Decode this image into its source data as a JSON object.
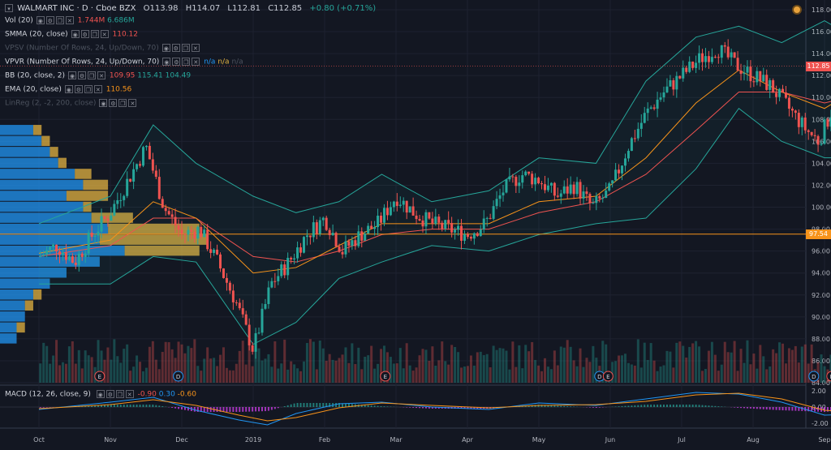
{
  "header": {
    "symbol_title": "WALMART INC · D · Cboe BZX",
    "ohlc": {
      "o_label": "O",
      "open": "113.98",
      "h_label": "H",
      "high": "114.07",
      "l_label": "L",
      "low": "112.81",
      "c_label": "C",
      "close": "112.85",
      "change": "+0.80 (+0.71%)"
    }
  },
  "indicators": [
    {
      "name": "Vol (20)",
      "values": [
        "1.744M",
        "6.686M"
      ],
      "colors": [
        "#ef5350",
        "#26a69a"
      ],
      "buttons": 4,
      "dim": false
    },
    {
      "name": "SMMA (20, close)",
      "values": [
        "110.12"
      ],
      "colors": [
        "#ef5350"
      ],
      "buttons": 4,
      "dim": false
    },
    {
      "name": "VPSV (Number Of Rows, 24, Up/Down, 70)",
      "values": [],
      "colors": [],
      "buttons": 4,
      "dim": true
    },
    {
      "name": "VPVR (Number Of Rows, 24, Up/Down, 70)",
      "values": [
        "n/a",
        "n/a",
        "n/a"
      ],
      "colors": [
        "#2196f3",
        "#e3b341",
        "#4c525e"
      ],
      "buttons": 4,
      "dim": false
    },
    {
      "name": "BB (20, close, 2)",
      "values": [
        "109.95",
        "115.41",
        "104.49"
      ],
      "colors": [
        "#ef5350",
        "#26a69a",
        "#26a69a"
      ],
      "buttons": 4,
      "dim": false
    },
    {
      "name": "EMA (20, close)",
      "values": [
        "110.56"
      ],
      "colors": [
        "#f7931a"
      ],
      "buttons": 4,
      "dim": false
    },
    {
      "name": "LinReg (2, -2, 200, close)",
      "values": [],
      "colors": [],
      "buttons": 4,
      "dim": true
    }
  ],
  "macd_legend": {
    "name": "MACD (12, 26, close, 9)",
    "values": [
      "-0.90",
      "0.30",
      "-0.60"
    ],
    "colors": [
      "#ef5350",
      "#2196f3",
      "#f7931a"
    ]
  },
  "price_tags": [
    {
      "label": "112.85",
      "price": 112.85,
      "color": "#ef5350"
    },
    {
      "label": "97.54",
      "price": 97.54,
      "color": "#f7931a"
    }
  ],
  "event_markers": [
    {
      "label": "E",
      "month": 0.85
    },
    {
      "label": "D",
      "month": 1.95
    },
    {
      "label": "E",
      "month": 4.85
    },
    {
      "label": "D",
      "month": 7.85
    },
    {
      "label": "E",
      "month": 7.97
    },
    {
      "label": "D",
      "month": 10.85
    },
    {
      "label": "E",
      "month": 11.1
    }
  ],
  "chart_data": {
    "type": "line",
    "x_ticks": [
      "Oct",
      "Nov",
      "Dec",
      "2019",
      "Feb",
      "Mar",
      "Apr",
      "May",
      "Jun",
      "Jul",
      "Aug",
      "Sep"
    ],
    "price_axis": {
      "ticks": [
        "118.00",
        "116.00",
        "114.00",
        "112.00",
        "110.00",
        "108.00",
        "106.00",
        "104.00",
        "102.00",
        "100.00",
        "98.00",
        "96.00",
        "94.00",
        "92.00",
        "90.00",
        "88.00",
        "86.00",
        "84.00"
      ],
      "ylim": [
        84,
        118
      ]
    },
    "macd_axis": {
      "ticks": [
        "2.00",
        "0.00",
        "-2.00"
      ],
      "ylim": [
        -2.6,
        2.6
      ]
    },
    "close_series": [
      {
        "m": 0,
        "v": 95.5
      },
      {
        "m": 0.25,
        "v": 96.5
      },
      {
        "m": 0.5,
        "v": 95.0
      },
      {
        "m": 0.75,
        "v": 97.5
      },
      {
        "m": 1.0,
        "v": 99.5
      },
      {
        "m": 1.25,
        "v": 102.5
      },
      {
        "m": 1.5,
        "v": 105.5
      },
      {
        "m": 1.75,
        "v": 100.0
      },
      {
        "m": 2.0,
        "v": 97.5
      },
      {
        "m": 2.25,
        "v": 98.0
      },
      {
        "m": 2.5,
        "v": 95.0
      },
      {
        "m": 2.75,
        "v": 91.5
      },
      {
        "m": 3.0,
        "v": 87.0
      },
      {
        "m": 3.25,
        "v": 93.0
      },
      {
        "m": 3.5,
        "v": 95.0
      },
      {
        "m": 3.75,
        "v": 97.5
      },
      {
        "m": 4.0,
        "v": 99.0
      },
      {
        "m": 4.25,
        "v": 96.0
      },
      {
        "m": 4.5,
        "v": 97.5
      },
      {
        "m": 4.75,
        "v": 98.5
      },
      {
        "m": 5.0,
        "v": 101.0
      },
      {
        "m": 5.25,
        "v": 99.5
      },
      {
        "m": 5.5,
        "v": 98.5
      },
      {
        "m": 5.75,
        "v": 98.0
      },
      {
        "m": 6.0,
        "v": 97.5
      },
      {
        "m": 6.25,
        "v": 98.5
      },
      {
        "m": 6.5,
        "v": 101.5
      },
      {
        "m": 6.75,
        "v": 103.0
      },
      {
        "m": 7.0,
        "v": 102.5
      },
      {
        "m": 7.25,
        "v": 101.0
      },
      {
        "m": 7.5,
        "v": 102.0
      },
      {
        "m": 7.75,
        "v": 100.0
      },
      {
        "m": 8.0,
        "v": 101.5
      },
      {
        "m": 8.25,
        "v": 105.5
      },
      {
        "m": 8.5,
        "v": 108.5
      },
      {
        "m": 8.75,
        "v": 110.5
      },
      {
        "m": 9.0,
        "v": 112.0
      },
      {
        "m": 9.25,
        "v": 113.5
      },
      {
        "m": 9.5,
        "v": 114.5
      },
      {
        "m": 9.75,
        "v": 113.0
      },
      {
        "m": 10.0,
        "v": 112.0
      },
      {
        "m": 10.25,
        "v": 111.0
      },
      {
        "m": 10.5,
        "v": 109.0
      },
      {
        "m": 10.75,
        "v": 107.0
      },
      {
        "m": 10.92,
        "v": 106.0
      },
      {
        "m": 11.08,
        "v": 108.5
      },
      {
        "m": 11.25,
        "v": 112.0
      },
      {
        "m": 11.4,
        "v": 112.85
      }
    ],
    "bb_upper": [
      {
        "m": 0,
        "v": 98.5
      },
      {
        "m": 1.0,
        "v": 101.0
      },
      {
        "m": 1.6,
        "v": 107.5
      },
      {
        "m": 2.2,
        "v": 104.0
      },
      {
        "m": 3.0,
        "v": 101.0
      },
      {
        "m": 3.6,
        "v": 99.5
      },
      {
        "m": 4.2,
        "v": 100.5
      },
      {
        "m": 4.8,
        "v": 103.0
      },
      {
        "m": 5.5,
        "v": 100.5
      },
      {
        "m": 6.3,
        "v": 101.5
      },
      {
        "m": 7.0,
        "v": 104.5
      },
      {
        "m": 7.8,
        "v": 104.0
      },
      {
        "m": 8.5,
        "v": 111.5
      },
      {
        "m": 9.2,
        "v": 115.5
      },
      {
        "m": 9.8,
        "v": 116.5
      },
      {
        "m": 10.4,
        "v": 115.0
      },
      {
        "m": 11.0,
        "v": 117.0
      },
      {
        "m": 11.4,
        "v": 115.5
      }
    ],
    "bb_lower": [
      {
        "m": 0,
        "v": 93.0
      },
      {
        "m": 1.0,
        "v": 93.0
      },
      {
        "m": 1.6,
        "v": 95.5
      },
      {
        "m": 2.2,
        "v": 95.0
      },
      {
        "m": 3.0,
        "v": 87.5
      },
      {
        "m": 3.6,
        "v": 89.5
      },
      {
        "m": 4.2,
        "v": 93.5
      },
      {
        "m": 4.8,
        "v": 95.0
      },
      {
        "m": 5.5,
        "v": 96.5
      },
      {
        "m": 6.3,
        "v": 96.0
      },
      {
        "m": 7.0,
        "v": 97.5
      },
      {
        "m": 7.8,
        "v": 98.5
      },
      {
        "m": 8.5,
        "v": 99.0
      },
      {
        "m": 9.2,
        "v": 103.5
      },
      {
        "m": 9.8,
        "v": 109.0
      },
      {
        "m": 10.4,
        "v": 106.0
      },
      {
        "m": 11.0,
        "v": 104.5
      },
      {
        "m": 11.4,
        "v": 104.5
      }
    ],
    "ema": [
      {
        "m": 0,
        "v": 95.8
      },
      {
        "m": 1.0,
        "v": 97.0
      },
      {
        "m": 1.6,
        "v": 100.5
      },
      {
        "m": 2.2,
        "v": 99.0
      },
      {
        "m": 3.0,
        "v": 94.0
      },
      {
        "m": 3.6,
        "v": 94.5
      },
      {
        "m": 4.2,
        "v": 96.5
      },
      {
        "m": 4.8,
        "v": 98.5
      },
      {
        "m": 5.5,
        "v": 98.5
      },
      {
        "m": 6.3,
        "v": 98.5
      },
      {
        "m": 7.0,
        "v": 100.5
      },
      {
        "m": 7.8,
        "v": 101.0
      },
      {
        "m": 8.5,
        "v": 104.5
      },
      {
        "m": 9.2,
        "v": 109.5
      },
      {
        "m": 9.8,
        "v": 112.5
      },
      {
        "m": 10.4,
        "v": 110.5
      },
      {
        "m": 11.0,
        "v": 109.0
      },
      {
        "m": 11.4,
        "v": 110.56
      }
    ],
    "smma": [
      {
        "m": 0,
        "v": 95.5
      },
      {
        "m": 1.0,
        "v": 96.5
      },
      {
        "m": 1.6,
        "v": 99.0
      },
      {
        "m": 2.2,
        "v": 99.0
      },
      {
        "m": 3.0,
        "v": 95.5
      },
      {
        "m": 3.6,
        "v": 95.0
      },
      {
        "m": 4.2,
        "v": 96.0
      },
      {
        "m": 4.8,
        "v": 97.5
      },
      {
        "m": 5.5,
        "v": 98.0
      },
      {
        "m": 6.3,
        "v": 98.0
      },
      {
        "m": 7.0,
        "v": 99.5
      },
      {
        "m": 7.8,
        "v": 100.5
      },
      {
        "m": 8.5,
        "v": 103.0
      },
      {
        "m": 9.2,
        "v": 107.0
      },
      {
        "m": 9.8,
        "v": 110.5
      },
      {
        "m": 10.4,
        "v": 110.5
      },
      {
        "m": 11.0,
        "v": 109.5
      },
      {
        "m": 11.4,
        "v": 110.12
      }
    ],
    "volume_profile": [
      {
        "price": 107.0,
        "up": 0.04,
        "down": 0.05
      },
      {
        "price": 106.0,
        "up": 0.05,
        "down": 0.06
      },
      {
        "price": 105.0,
        "up": 0.06,
        "down": 0.07
      },
      {
        "price": 104.0,
        "up": 0.07,
        "down": 0.08
      },
      {
        "price": 103.0,
        "up": 0.09,
        "down": 0.11
      },
      {
        "price": 102.0,
        "up": 0.1,
        "down": 0.13
      },
      {
        "price": 101.0,
        "up": 0.08,
        "down": 0.13
      },
      {
        "price": 100.0,
        "up": 0.1,
        "down": 0.11
      },
      {
        "price": 99.0,
        "up": 0.11,
        "down": 0.16
      },
      {
        "price": 98.0,
        "up": 0.13,
        "down": 0.24
      },
      {
        "price": 97.0,
        "up": 0.12,
        "down": 0.25
      },
      {
        "price": 96.0,
        "up": 0.15,
        "down": 0.24
      },
      {
        "price": 95.0,
        "up": 0.12,
        "down": 0.1
      },
      {
        "price": 94.0,
        "up": 0.08,
        "down": 0.08
      },
      {
        "price": 93.0,
        "up": 0.06,
        "down": 0.05
      },
      {
        "price": 92.0,
        "up": 0.04,
        "down": 0.05
      },
      {
        "price": 91.0,
        "up": 0.03,
        "down": 0.04
      },
      {
        "price": 90.0,
        "up": 0.03,
        "down": 0.03
      },
      {
        "price": 89.0,
        "up": 0.02,
        "down": 0.03
      },
      {
        "price": 88.0,
        "up": 0.02,
        "down": 0.02
      }
    ],
    "signal_dots": [
      {
        "m": 11.82,
        "v": 115.0
      },
      {
        "m": 11.82,
        "v": 112.0
      },
      {
        "m": 11.82,
        "v": 110.0
      },
      {
        "m": 11.82,
        "v": 108.0
      },
      {
        "m": 11.95,
        "v": 108.0
      },
      {
        "m": 11.82,
        "v": 104.5
      },
      {
        "m": 11.95,
        "v": 104.5
      },
      {
        "m": 11.9,
        "v": 102.0
      }
    ],
    "macd_line": [
      {
        "m": 0,
        "v": -0.3
      },
      {
        "m": 1.0,
        "v": 0.6
      },
      {
        "m": 1.6,
        "v": 1.2
      },
      {
        "m": 2.2,
        "v": -0.4
      },
      {
        "m": 2.8,
        "v": -1.6
      },
      {
        "m": 3.2,
        "v": -2.2
      },
      {
        "m": 3.6,
        "v": -0.8
      },
      {
        "m": 4.2,
        "v": 0.4
      },
      {
        "m": 4.8,
        "v": 0.6
      },
      {
        "m": 5.5,
        "v": 0.0
      },
      {
        "m": 6.3,
        "v": -0.3
      },
      {
        "m": 7.0,
        "v": 0.5
      },
      {
        "m": 7.8,
        "v": 0.2
      },
      {
        "m": 8.5,
        "v": 1.0
      },
      {
        "m": 9.2,
        "v": 1.8
      },
      {
        "m": 9.8,
        "v": 1.6
      },
      {
        "m": 10.4,
        "v": 0.6
      },
      {
        "m": 11.0,
        "v": -1.0
      },
      {
        "m": 11.4,
        "v": -0.9
      }
    ],
    "macd_signal": [
      {
        "m": 0,
        "v": -0.2
      },
      {
        "m": 1.0,
        "v": 0.3
      },
      {
        "m": 1.6,
        "v": 0.9
      },
      {
        "m": 2.2,
        "v": 0.2
      },
      {
        "m": 2.8,
        "v": -1.0
      },
      {
        "m": 3.2,
        "v": -1.7
      },
      {
        "m": 3.6,
        "v": -1.3
      },
      {
        "m": 4.2,
        "v": -0.1
      },
      {
        "m": 4.8,
        "v": 0.5
      },
      {
        "m": 5.5,
        "v": 0.2
      },
      {
        "m": 6.3,
        "v": -0.1
      },
      {
        "m": 7.0,
        "v": 0.2
      },
      {
        "m": 7.8,
        "v": 0.3
      },
      {
        "m": 8.5,
        "v": 0.7
      },
      {
        "m": 9.2,
        "v": 1.5
      },
      {
        "m": 9.8,
        "v": 1.7
      },
      {
        "m": 10.4,
        "v": 1.0
      },
      {
        "m": 11.0,
        "v": -0.4
      },
      {
        "m": 11.4,
        "v": -0.6
      }
    ],
    "support_line": 97.54,
    "last_price": 112.85
  }
}
